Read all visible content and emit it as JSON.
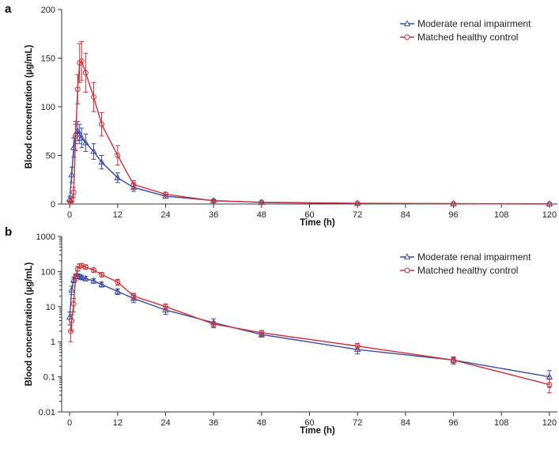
{
  "colors": {
    "renal": "#3b4aa0",
    "healthy": "#c8323a",
    "axis": "#333333"
  },
  "chart_data": [
    {
      "panel_label": "a",
      "type": "line",
      "scale": "linear",
      "xlabel": "Time (h)",
      "ylabel": "Blood concentration (µg/mL)",
      "xlim": [
        -2,
        122
      ],
      "ylim": [
        0,
        200
      ],
      "xticks": [
        "0",
        "12",
        "24",
        "36",
        "48",
        "60",
        "72",
        "84",
        "96",
        "108",
        "120"
      ],
      "yticks": [
        "0",
        "50",
        "100",
        "150",
        "200"
      ],
      "legend_position": "top-right",
      "series": [
        {
          "name": "Moderate renal impairment",
          "marker": "triangle",
          "x": [
            0,
            0.5,
            1,
            1.5,
            2,
            2.5,
            3,
            4,
            6,
            8,
            12,
            16,
            24,
            36,
            48,
            72,
            96,
            120
          ],
          "y": [
            5,
            30,
            58,
            72,
            75,
            72,
            68,
            63,
            54,
            43,
            27,
            17,
            8,
            3.5,
            1.6,
            0.6,
            0.3,
            0.1
          ],
          "err": [
            3,
            8,
            10,
            10,
            10,
            10,
            10,
            9,
            8,
            7,
            5,
            4,
            2,
            1,
            0.5,
            0.3,
            0.2,
            0.1
          ]
        },
        {
          "name": "Matched healthy control",
          "marker": "circle",
          "x": [
            0.25,
            0.5,
            1,
            1.5,
            2,
            2.5,
            3,
            4,
            6,
            8,
            12,
            16,
            24,
            36,
            48,
            72,
            96,
            120
          ],
          "y": [
            2,
            4,
            12,
            70,
            118,
            145,
            147,
            135,
            110,
            82,
            50,
            20,
            10,
            3.2,
            1.8,
            0.75,
            0.3,
            0.06
          ],
          "err": [
            1,
            2,
            5,
            15,
            15,
            20,
            20,
            20,
            15,
            12,
            10,
            4,
            2,
            0.5,
            0.3,
            0.15,
            0.1,
            0.04
          ]
        }
      ]
    },
    {
      "panel_label": "b",
      "type": "line",
      "scale": "log",
      "xlabel": "Time (h)",
      "ylabel": "Blood concentration (µg/mL)",
      "xlim": [
        -2,
        122
      ],
      "ylim": [
        0.01,
        1000
      ],
      "xticks": [
        "0",
        "12",
        "24",
        "36",
        "48",
        "60",
        "72",
        "84",
        "96",
        "108",
        "120"
      ],
      "yticks": [
        "0.01",
        "0.1",
        "1",
        "10",
        "100",
        "1000"
      ],
      "legend_position": "top-right",
      "series": [
        {
          "name": "Moderate renal impairment",
          "marker": "triangle",
          "x": [
            0,
            0.5,
            1,
            1.5,
            2,
            2.5,
            3,
            4,
            6,
            8,
            12,
            16,
            24,
            36,
            48,
            72,
            96,
            120
          ],
          "y": [
            5,
            30,
            58,
            72,
            75,
            72,
            68,
            63,
            54,
            43,
            27,
            17,
            8,
            3.5,
            1.6,
            0.6,
            0.3,
            0.1
          ],
          "err": [
            2,
            8,
            10,
            10,
            10,
            10,
            10,
            9,
            8,
            7,
            5,
            4,
            2,
            1,
            0.25,
            0.15,
            0.07,
            0.05
          ]
        },
        {
          "name": "Matched healthy control",
          "marker": "circle",
          "x": [
            0.25,
            0.5,
            1,
            1.5,
            2,
            2.5,
            3,
            4,
            6,
            8,
            12,
            16,
            24,
            36,
            48,
            72,
            96,
            120
          ],
          "y": [
            2,
            4,
            12,
            70,
            118,
            145,
            147,
            135,
            110,
            82,
            50,
            20,
            10,
            3.2,
            1.8,
            0.75,
            0.3,
            0.06
          ],
          "err": [
            1,
            2,
            5,
            15,
            15,
            20,
            20,
            20,
            15,
            12,
            10,
            4,
            2,
            0.5,
            0.3,
            0.15,
            0.05,
            0.025
          ]
        }
      ]
    }
  ]
}
